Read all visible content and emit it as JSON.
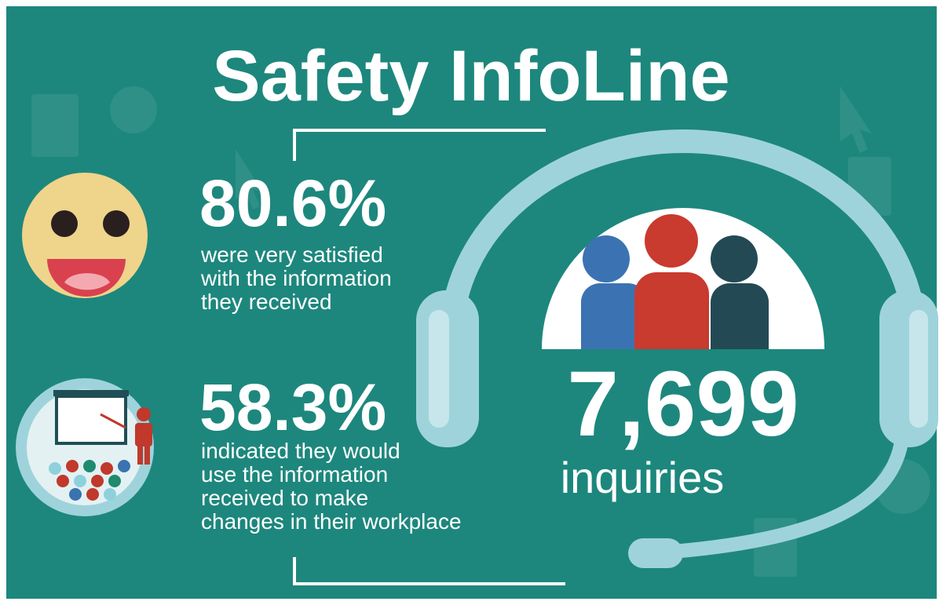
{
  "title": "Safety InfoLine",
  "stats": [
    {
      "value": "80.6%",
      "lines": [
        "were very satisfied",
        "with the information",
        "they received"
      ]
    },
    {
      "value": "58.3%",
      "lines": [
        "indicated they would",
        "use the information",
        "received to make",
        "changes in their workplace"
      ]
    }
  ],
  "headline": {
    "value": "7,699",
    "label": "inquiries"
  }
}
